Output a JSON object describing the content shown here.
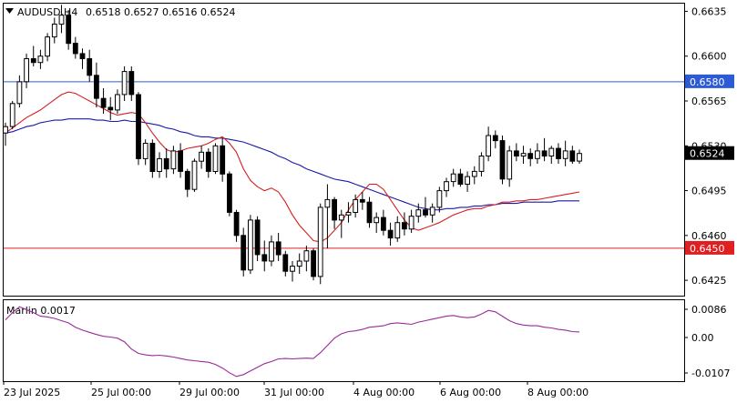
{
  "header": {
    "symbol_timeframe": "AUDUSD,H4",
    "ohlc": "0.6518 0.6527 0.6516 0.6524"
  },
  "indicator": {
    "label": "Marlin 0.0017",
    "ticks": [
      "0.0086",
      "0.00",
      "-0.0107"
    ]
  },
  "colors": {
    "bull_body": "#ffffff",
    "bear_body": "#000000",
    "sma_slow": "#1a1aa6",
    "sma_fast": "#d42020",
    "level_upper": "#2d5bd6",
    "level_lower": "#e02020",
    "marlin": "#9b2a9b",
    "current_price_box": "#000000"
  },
  "chart_data": [
    {
      "type": "candlestick",
      "symbol": "AUDUSD",
      "timeframe": "H4",
      "y_ticks": [
        "0.6635",
        "0.6600",
        "0.6565",
        "0.6530",
        "0.6495",
        "0.6460",
        "0.6425"
      ],
      "ylim": [
        0.6413,
        0.6641
      ],
      "x_labels": [
        "23 Jul 2025",
        "25 Jul 00:00",
        "29 Jul 00:00",
        "31 Jul 00:00",
        "4 Aug 00:00",
        "6 Aug 00:00",
        "8 Aug 00:00"
      ],
      "horizontal_levels": [
        {
          "value": 0.658,
          "label": "0.6580",
          "color": "blue"
        },
        {
          "value": 0.645,
          "label": "0.6450",
          "color": "red"
        }
      ],
      "current_price": {
        "value": 0.6524,
        "label": "0.6524"
      },
      "candles": [
        [
          0.654,
          0.6548,
          0.653,
          0.6545
        ],
        [
          0.6545,
          0.6565,
          0.6543,
          0.6563
        ],
        [
          0.6563,
          0.6585,
          0.656,
          0.658
        ],
        [
          0.658,
          0.6602,
          0.6575,
          0.6598
        ],
        [
          0.6598,
          0.6608,
          0.6592,
          0.6595
        ],
        [
          0.6595,
          0.6605,
          0.659,
          0.66
        ],
        [
          0.66,
          0.6618,
          0.6596,
          0.6615
        ],
        [
          0.6615,
          0.663,
          0.661,
          0.6625
        ],
        [
          0.6625,
          0.664,
          0.6618,
          0.6632
        ],
        [
          0.6632,
          0.6636,
          0.6605,
          0.661
        ],
        [
          0.661,
          0.6615,
          0.6598,
          0.6602
        ],
        [
          0.6602,
          0.6606,
          0.659,
          0.6598
        ],
        [
          0.6598,
          0.6605,
          0.658,
          0.6585
        ],
        [
          0.6585,
          0.6595,
          0.656,
          0.6567
        ],
        [
          0.6567,
          0.6575,
          0.6555,
          0.656
        ],
        [
          0.656,
          0.6568,
          0.655,
          0.6558
        ],
        [
          0.6558,
          0.6574,
          0.6555,
          0.657
        ],
        [
          0.657,
          0.6592,
          0.6565,
          0.6588
        ],
        [
          0.6588,
          0.6592,
          0.6565,
          0.657
        ],
        [
          0.657,
          0.6572,
          0.6515,
          0.652
        ],
        [
          0.652,
          0.6535,
          0.6515,
          0.6532
        ],
        [
          0.6532,
          0.6535,
          0.6505,
          0.651
        ],
        [
          0.651,
          0.6525,
          0.6505,
          0.652
        ],
        [
          0.652,
          0.6528,
          0.6505,
          0.6512
        ],
        [
          0.6512,
          0.653,
          0.6508,
          0.6526
        ],
        [
          0.6526,
          0.6532,
          0.6505,
          0.651
        ],
        [
          0.651,
          0.6512,
          0.649,
          0.6496
        ],
        [
          0.6496,
          0.652,
          0.6494,
          0.6518
        ],
        [
          0.6518,
          0.653,
          0.6512,
          0.6525
        ],
        [
          0.6525,
          0.6528,
          0.6505,
          0.651
        ],
        [
          0.651,
          0.6532,
          0.6508,
          0.653
        ],
        [
          0.653,
          0.6536,
          0.6502,
          0.6508
        ],
        [
          0.6508,
          0.651,
          0.6475,
          0.6478
        ],
        [
          0.6478,
          0.648,
          0.6455,
          0.646
        ],
        [
          0.646,
          0.6466,
          0.6428,
          0.6433
        ],
        [
          0.6433,
          0.6476,
          0.643,
          0.6472
        ],
        [
          0.6472,
          0.6475,
          0.644,
          0.6445
        ],
        [
          0.6445,
          0.6456,
          0.6432,
          0.644
        ],
        [
          0.644,
          0.646,
          0.6436,
          0.6455
        ],
        [
          0.6455,
          0.6462,
          0.644,
          0.6445
        ],
        [
          0.6445,
          0.6448,
          0.6428,
          0.6432
        ],
        [
          0.6432,
          0.644,
          0.6424,
          0.6436
        ],
        [
          0.6436,
          0.6446,
          0.643,
          0.644
        ],
        [
          0.644,
          0.6452,
          0.6432,
          0.6448
        ],
        [
          0.6448,
          0.645,
          0.6425,
          0.6428
        ],
        [
          0.6428,
          0.6485,
          0.6422,
          0.6482
        ],
        [
          0.6482,
          0.65,
          0.645,
          0.6488
        ],
        [
          0.6488,
          0.649,
          0.6465,
          0.6472
        ],
        [
          0.6472,
          0.648,
          0.6458,
          0.6476
        ],
        [
          0.6476,
          0.6486,
          0.647,
          0.6478
        ],
        [
          0.6478,
          0.6492,
          0.6474,
          0.6488
        ],
        [
          0.6488,
          0.6494,
          0.648,
          0.6486
        ],
        [
          0.6486,
          0.649,
          0.6466,
          0.647
        ],
        [
          0.647,
          0.6478,
          0.6462,
          0.6474
        ],
        [
          0.6474,
          0.648,
          0.646,
          0.6464
        ],
        [
          0.6464,
          0.647,
          0.6452,
          0.6458
        ],
        [
          0.6458,
          0.6475,
          0.6455,
          0.647
        ],
        [
          0.647,
          0.6478,
          0.646,
          0.6465
        ],
        [
          0.6465,
          0.648,
          0.6462,
          0.6475
        ],
        [
          0.6475,
          0.6485,
          0.647,
          0.648
        ],
        [
          0.648,
          0.649,
          0.6474,
          0.6476
        ],
        [
          0.6476,
          0.6485,
          0.647,
          0.6482
        ],
        [
          0.6482,
          0.6498,
          0.6478,
          0.6495
        ],
        [
          0.6495,
          0.6505,
          0.649,
          0.6502
        ],
        [
          0.6502,
          0.6512,
          0.6498,
          0.6508
        ],
        [
          0.6508,
          0.6512,
          0.6498,
          0.65
        ],
        [
          0.65,
          0.651,
          0.6494,
          0.6506
        ],
        [
          0.6506,
          0.6514,
          0.65,
          0.651
        ],
        [
          0.651,
          0.6525,
          0.6506,
          0.6522
        ],
        [
          0.6522,
          0.6545,
          0.6518,
          0.6538
        ],
        [
          0.6538,
          0.6542,
          0.6528,
          0.6534
        ],
        [
          0.6534,
          0.6538,
          0.65,
          0.6504
        ],
        [
          0.6504,
          0.653,
          0.6498,
          0.6526
        ],
        [
          0.6526,
          0.6532,
          0.6518,
          0.6522
        ],
        [
          0.6522,
          0.653,
          0.6516,
          0.6524
        ],
        [
          0.6524,
          0.6528,
          0.6514,
          0.652
        ],
        [
          0.652,
          0.6532,
          0.6516,
          0.6526
        ],
        [
          0.6526,
          0.6536,
          0.6518,
          0.6522
        ],
        [
          0.6522,
          0.653,
          0.6516,
          0.6528
        ],
        [
          0.6528,
          0.6532,
          0.6516,
          0.652
        ],
        [
          0.652,
          0.6534,
          0.6514,
          0.6526
        ],
        [
          0.6526,
          0.653,
          0.6516,
          0.6518
        ],
        [
          0.6518,
          0.6527,
          0.6516,
          0.6524
        ]
      ],
      "sma_slow": [
        0.654,
        0.6541,
        0.6543,
        0.6545,
        0.6546,
        0.6548,
        0.6549,
        0.655,
        0.655,
        0.6551,
        0.6551,
        0.6551,
        0.6551,
        0.655,
        0.655,
        0.6549,
        0.6549,
        0.655,
        0.6549,
        0.6549,
        0.6548,
        0.6547,
        0.6546,
        0.6544,
        0.6543,
        0.6541,
        0.654,
        0.6538,
        0.6537,
        0.6537,
        0.6536,
        0.6536,
        0.6535,
        0.6534,
        0.6533,
        0.6531,
        0.6529,
        0.6527,
        0.6525,
        0.6522,
        0.652,
        0.6517,
        0.6515,
        0.6512,
        0.651,
        0.6508,
        0.6506,
        0.6504,
        0.6503,
        0.6502,
        0.65,
        0.6498,
        0.6496,
        0.6494,
        0.6492,
        0.649,
        0.6488,
        0.6486,
        0.6484,
        0.6482,
        0.6481,
        0.648,
        0.648,
        0.6481,
        0.6481,
        0.6482,
        0.6482,
        0.6483,
        0.6483,
        0.6484,
        0.6484,
        0.6485,
        0.6485,
        0.6485,
        0.6486,
        0.6486,
        0.6486,
        0.6486,
        0.6486,
        0.6487,
        0.6487,
        0.6487,
        0.6487
      ],
      "sma_fast": [
        0.654,
        0.6544,
        0.6548,
        0.6552,
        0.6555,
        0.6558,
        0.6562,
        0.6566,
        0.657,
        0.6572,
        0.6571,
        0.6568,
        0.6565,
        0.6562,
        0.6559,
        0.6556,
        0.6554,
        0.6555,
        0.6556,
        0.6555,
        0.6548,
        0.654,
        0.6533,
        0.6527,
        0.6525,
        0.6526,
        0.6528,
        0.6529,
        0.653,
        0.6532,
        0.6535,
        0.6537,
        0.6532,
        0.6525,
        0.6512,
        0.6503,
        0.6498,
        0.6495,
        0.6497,
        0.6494,
        0.6486,
        0.6476,
        0.6468,
        0.6462,
        0.6456,
        0.6455,
        0.6458,
        0.6464,
        0.647,
        0.648,
        0.6488,
        0.6494,
        0.65,
        0.65,
        0.6496,
        0.6488,
        0.648,
        0.6472,
        0.6466,
        0.6464,
        0.6466,
        0.6468,
        0.647,
        0.6473,
        0.6476,
        0.6478,
        0.648,
        0.6481,
        0.6481,
        0.6483,
        0.6484,
        0.6486,
        0.6486,
        0.6487,
        0.6487,
        0.6488,
        0.6488,
        0.6489,
        0.649,
        0.6491,
        0.6492,
        0.6493,
        0.6494
      ],
      "marlin": [
        0.005,
        0.007,
        0.0086,
        0.0078,
        0.007,
        0.006,
        0.0058,
        0.0054,
        0.0048,
        0.0042,
        0.003,
        0.0022,
        0.0016,
        0.001,
        0.0005,
        0.0003,
        0.0,
        -0.001,
        -0.003,
        -0.0042,
        -0.0046,
        -0.0048,
        -0.0047,
        -0.0049,
        -0.0052,
        -0.0056,
        -0.006,
        -0.0062,
        -0.0064,
        -0.0066,
        -0.0072,
        -0.0082,
        -0.0095,
        -0.0105,
        -0.01,
        -0.009,
        -0.008,
        -0.007,
        -0.0064,
        -0.0057,
        -0.0056,
        -0.0057,
        -0.0056,
        -0.0055,
        -0.0056,
        -0.004,
        -0.002,
        0.0,
        0.0012,
        0.0018,
        0.002,
        0.0024,
        0.003,
        0.0032,
        0.0034,
        0.004,
        0.0042,
        0.004,
        0.0038,
        0.0044,
        0.0048,
        0.0052,
        0.0056,
        0.006,
        0.0062,
        0.0058,
        0.0056,
        0.0058,
        0.0066,
        0.0076,
        0.0072,
        0.006,
        0.0048,
        0.004,
        0.0036,
        0.0034,
        0.0034,
        0.003,
        0.0028,
        0.0024,
        0.0022,
        0.0018,
        0.0017
      ]
    }
  ]
}
